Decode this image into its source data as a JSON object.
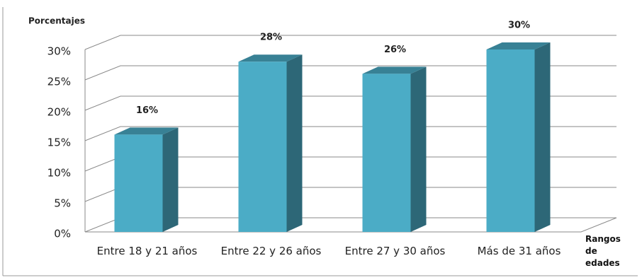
{
  "chart_data": {
    "type": "bar3d",
    "y_axis_label": "Porcentajes",
    "x_axis_label": "Rangos de edades",
    "categories": [
      "Entre 18 y 21 años",
      "Entre 22 y 26 años",
      "Entre 27 y 30 años",
      "Más de 31 años"
    ],
    "values": [
      16,
      28,
      26,
      30
    ],
    "value_labels": [
      "16%",
      "28%",
      "26%",
      "30%"
    ],
    "color": "#4bacc6",
    "ylim": [
      0,
      30
    ],
    "yticks": [
      {
        "value": 0,
        "label": "0%"
      },
      {
        "value": 5,
        "label": "5%"
      },
      {
        "value": 10,
        "label": "10%"
      },
      {
        "value": 15,
        "label": "15%"
      },
      {
        "value": 20,
        "label": "20%"
      },
      {
        "value": 25,
        "label": "25%"
      },
      {
        "value": 30,
        "label": "30%"
      }
    ],
    "grid": true
  }
}
